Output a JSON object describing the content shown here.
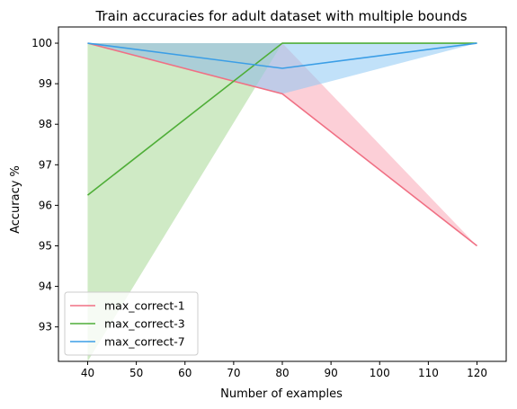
{
  "chart_data": {
    "type": "line",
    "title": "Train accuracies for adult dataset with multiple bounds",
    "xlabel": "Number of examples",
    "ylabel": "Accuracy %",
    "x": [
      40,
      80,
      120
    ],
    "xlim": [
      34,
      126
    ],
    "ylim": [
      92.15,
      100.4
    ],
    "xticks": [
      40,
      50,
      60,
      70,
      80,
      90,
      100,
      110,
      120
    ],
    "yticks": [
      93,
      94,
      95,
      96,
      97,
      98,
      99,
      100
    ],
    "grid": false,
    "legend_position": "lower-left",
    "series": [
      {
        "name": "max_correct-1",
        "color": "#f07084",
        "fill_color": "#f9a8b6",
        "values": [
          100,
          98.75,
          95
        ],
        "band_lower": [
          100,
          98.75,
          95
        ],
        "band_upper": [
          100,
          100,
          95
        ]
      },
      {
        "name": "max_correct-3",
        "color": "#4fae38",
        "fill_color": "#a7d895",
        "values": [
          96.25,
          100,
          100
        ],
        "band_lower": [
          92.15,
          100,
          100
        ],
        "band_upper": [
          100,
          100,
          100
        ]
      },
      {
        "name": "max_correct-7",
        "color": "#3b9ee6",
        "fill_color": "#8ec9f4",
        "values": [
          100,
          99.38,
          100
        ],
        "band_lower": [
          100,
          98.75,
          100
        ],
        "band_upper": [
          100,
          100,
          100
        ]
      }
    ]
  }
}
